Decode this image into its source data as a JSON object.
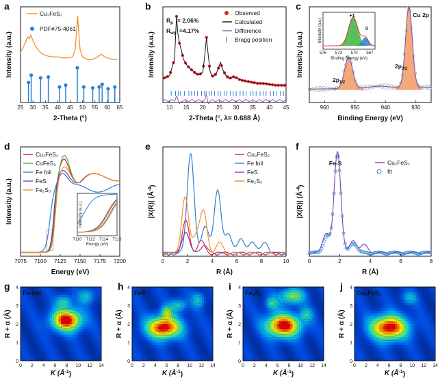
{
  "chart_data": [
    {
      "panel": "a",
      "type": "line",
      "xlabel": "2-Theta (°)",
      "ylabel": "Intensity (a.u.)",
      "xlim": [
        25,
        65
      ],
      "xticks": [
        25,
        30,
        35,
        40,
        45,
        50,
        55,
        60,
        65
      ],
      "series": [
        {
          "name": "Cu₂FeS₂",
          "color": "#f28e2b",
          "x": [
            25,
            26,
            27,
            27.8,
            28.5,
            29.2,
            30,
            31,
            32,
            33,
            34,
            35,
            36,
            38,
            40,
            42,
            44,
            46,
            47,
            47.5,
            48,
            48.5,
            49,
            50,
            52,
            54,
            56,
            57.5,
            59,
            61,
            63,
            64
          ],
          "y": [
            0.55,
            0.6,
            0.66,
            0.72,
            0.7,
            0.74,
            0.68,
            0.62,
            0.58,
            0.55,
            0.53,
            0.52,
            0.51,
            0.5,
            0.5,
            0.49,
            0.49,
            0.5,
            0.58,
            0.75,
            0.95,
            0.75,
            0.58,
            0.5,
            0.47,
            0.47,
            0.5,
            0.53,
            0.5,
            0.48,
            0.47,
            0.47
          ]
        },
        {
          "name": "PDF#75-4061",
          "color": "#2a7fd4",
          "style": "stem",
          "x": [
            28.2,
            29.3,
            33.1,
            36.2,
            40.7,
            43.2,
            47.9,
            50.5,
            54.1,
            56.7,
            57.9,
            60.3,
            63.0
          ],
          "y": [
            0.22,
            0.3,
            0.27,
            0.28,
            0.17,
            0.19,
            0.38,
            0.17,
            0.16,
            0.17,
            0.2,
            0.15,
            0.17
          ]
        }
      ]
    },
    {
      "panel": "b",
      "type": "line",
      "xlabel": "2-Theta (°, λ= 0.688 Å)",
      "ylabel": "Intensity (a.u.)",
      "xlim": [
        8,
        45
      ],
      "xticks": [
        10,
        15,
        20,
        25,
        30,
        35,
        40,
        45
      ],
      "annotations": [
        "R",
        "p",
        "= 2.06%",
        "R",
        "wp",
        "=4.17%"
      ],
      "series": [
        {
          "name": "Observed",
          "color": "#e8202a",
          "style": "marker"
        },
        {
          "name": "Calculated",
          "color": "#111111"
        },
        {
          "name": "Difference",
          "color": "#9b59b6"
        },
        {
          "name": "Bragg position",
          "color": "#2a7fd4",
          "style": "tick",
          "x": [
            10.5,
            11.8,
            12.6,
            13.3,
            14.5,
            15.8,
            16.6,
            17.5,
            18.4,
            19.6,
            20.5,
            21.0,
            21.9,
            22.7,
            23.5,
            24.6,
            25.3,
            26.4,
            27.2,
            28.3,
            29.1,
            30.0,
            31.2,
            32.1,
            33.0,
            34.2,
            35.1,
            36.0,
            37.2,
            38.1,
            39.0,
            40.3,
            41.2,
            42.1,
            43.3,
            44.2
          ]
        }
      ],
      "profile": {
        "x": [
          8,
          10,
          11.5,
          12.1,
          12.5,
          13,
          13.5,
          14.2,
          15,
          16,
          17,
          18,
          19,
          20,
          20.6,
          21.1,
          21.6,
          22.2,
          23,
          24,
          24.7,
          25.3,
          26,
          27,
          28,
          29,
          30,
          31,
          32,
          33.5,
          35,
          36.5,
          38,
          40,
          42,
          45
        ],
        "y": [
          0.25,
          0.28,
          0.45,
          0.9,
          0.72,
          0.62,
          0.55,
          0.45,
          0.4,
          0.36,
          0.33,
          0.3,
          0.29,
          0.32,
          0.5,
          0.68,
          0.5,
          0.32,
          0.27,
          0.3,
          0.36,
          0.42,
          0.34,
          0.28,
          0.25,
          0.27,
          0.26,
          0.24,
          0.23,
          0.22,
          0.21,
          0.2,
          0.2,
          0.19,
          0.18,
          0.18
        ]
      }
    },
    {
      "panel": "c",
      "type": "line",
      "title": "Cu 2p",
      "xlabel": "Binding Energy (eV)",
      "ylabel": "Intensity (a.u.)",
      "xlim": [
        965,
        925
      ],
      "xticks": [
        960,
        950,
        940,
        930
      ],
      "peaks": [
        {
          "label": "2p",
          "sub": "3/2",
          "center": 932.3,
          "height": 0.85
        },
        {
          "label": "2p",
          "sub": "1/2",
          "center": 952.1,
          "height": 0.33
        }
      ],
      "inset": {
        "xlabel": "Binding Energy (eV)",
        "ylabel": "Intensity (a.u)",
        "xlim": [
          576,
          566
        ],
        "xticks": [
          576,
          573,
          570,
          567
        ],
        "components": [
          {
            "label": "+1",
            "center": 570.2,
            "color": "#3cb43c"
          },
          {
            "label": "0",
            "center": 567.9,
            "color": "#2a7fd4"
          }
        ]
      }
    },
    {
      "panel": "d",
      "type": "line",
      "xlabel": "Energy (eV)",
      "ylabel": "Intensity (a.u.)",
      "xlim": [
        7075,
        7200
      ],
      "xticks": [
        7075,
        7100,
        7125,
        7150,
        7175,
        7200
      ],
      "series": [
        {
          "name": "Cu₂FeS₂",
          "color": "#e8202a",
          "edge": 7118,
          "peak": 1.25
        },
        {
          "name": "CuFeS₂",
          "color": "#3cb43c",
          "edge": 7118.5,
          "peak": 1.3
        },
        {
          "name": "Fe foil",
          "color": "#2a7fd4",
          "edge": 7112,
          "peak": 1.05
        },
        {
          "name": "FeS",
          "color": "#7b3fb0",
          "edge": 7117,
          "peak": 1.1
        },
        {
          "name": "Fe₂S₃",
          "color": "#f28e2b",
          "edge": 7119,
          "peak": 1.15
        }
      ],
      "inset": {
        "xlabel": "Energy (eV)",
        "ylabel": "Intensity (a.u.)",
        "xlim": [
          7110,
          7116
        ],
        "xticks": [
          7110,
          7112,
          7114,
          7116
        ]
      }
    },
    {
      "panel": "e",
      "type": "line",
      "xlabel": "R (Å)",
      "ylabel": "|X(R)| (Å",
      "ylabel_sup": "-4",
      "ylabel_end": ")",
      "xlim": [
        0,
        10
      ],
      "xticks": [
        0,
        2,
        4,
        6,
        8,
        10
      ],
      "series": [
        {
          "name": "Cu₂FeS₂",
          "color": "#e8202a",
          "peaks": [
            [
              1.85,
              0.32
            ],
            [
              3.1,
              0.12
            ]
          ]
        },
        {
          "name": "Fe foil",
          "color": "#2a7fd4",
          "peaks": [
            [
              2.25,
              1.0
            ],
            [
              4.45,
              0.62
            ],
            [
              3.45,
              0.28
            ],
            [
              5.3,
              0.18
            ],
            [
              6.3,
              0.15
            ],
            [
              7.3,
              0.12
            ],
            [
              8.3,
              0.1
            ]
          ]
        },
        {
          "name": "FeS",
          "color": "#7b3fb0",
          "peaks": [
            [
              1.85,
              0.22
            ],
            [
              3.3,
              0.08
            ]
          ]
        },
        {
          "name": "Fe₂S₃",
          "color": "#f28e2b",
          "peaks": [
            [
              1.8,
              0.55
            ],
            [
              3.3,
              0.4
            ],
            [
              2.7,
              0.18
            ],
            [
              4.6,
              0.1
            ]
          ]
        }
      ]
    },
    {
      "panel": "f",
      "type": "line",
      "xlabel": "R (Å)",
      "ylabel": "|X(R)| (Å",
      "ylabel_sup": "-4",
      "ylabel_end": ")",
      "xlim": [
        0,
        8
      ],
      "xticks": [
        0,
        2,
        4,
        6,
        8
      ],
      "annotation": "Fe-S",
      "series": [
        {
          "name": "Cu₂FeS₂",
          "color": "#7b3fb0",
          "peaks": [
            [
              1.85,
              1.0
            ],
            [
              1.1,
              0.2
            ],
            [
              2.9,
              0.12
            ],
            [
              3.6,
              0.08
            ]
          ]
        },
        {
          "name": "fit",
          "color": "#2a7fd4",
          "style": "marker",
          "peaks": [
            [
              1.85,
              0.98
            ],
            [
              1.15,
              0.16
            ],
            [
              2.9,
              0.1
            ]
          ]
        }
      ]
    },
    {
      "panel": "g",
      "type": "heatmap",
      "label": "Fe-foil",
      "xlabel": "K (Å",
      "xlabel_sup": "-1",
      "xlabel_end": ")",
      "ylabel": "R + α (Å)",
      "xlim": [
        0,
        14
      ],
      "ylim": [
        0,
        4
      ],
      "xticks": [
        0,
        2,
        4,
        6,
        8,
        10,
        12,
        14
      ],
      "yticks": [
        0,
        1,
        2,
        3,
        4
      ],
      "blobs": [
        [
          8.0,
          2.2,
          2.6,
          0.4,
          1.0
        ],
        [
          7.5,
          3.2,
          1.4,
          0.25,
          0.35
        ],
        [
          11.5,
          3.5,
          1.5,
          0.3,
          0.3
        ]
      ]
    },
    {
      "panel": "h",
      "type": "heatmap",
      "label": "FeS",
      "xlabel": "K (Å",
      "xlabel_sup": "-1",
      "xlabel_end": ")",
      "ylabel": "R + α (Å)",
      "xlim": [
        0,
        14
      ],
      "ylim": [
        0,
        4
      ],
      "xticks": [
        0,
        2,
        4,
        6,
        8,
        10,
        12,
        14
      ],
      "yticks": [
        0,
        1,
        2,
        3,
        4
      ],
      "blobs": [
        [
          5.5,
          1.8,
          3.0,
          0.4,
          1.0
        ],
        [
          6.0,
          2.6,
          1.0,
          0.25,
          0.45
        ],
        [
          8.0,
          3.0,
          1.5,
          0.25,
          0.35
        ],
        [
          11.5,
          3.3,
          1.2,
          0.3,
          0.3
        ]
      ]
    },
    {
      "panel": "i",
      "type": "heatmap",
      "label": "Fe₂S₃",
      "xlabel": "K (Å",
      "xlabel_sup": "-1",
      "xlabel_end": ")",
      "ylabel": "R + α (Å)",
      "xlim": [
        0,
        14
      ],
      "ylim": [
        0,
        4
      ],
      "xticks": [
        0,
        2,
        4,
        6,
        8,
        10,
        12,
        14
      ],
      "yticks": [
        0,
        1,
        2,
        3,
        4
      ],
      "blobs": [
        [
          7.0,
          1.9,
          3.0,
          0.42,
          1.0
        ],
        [
          8.5,
          3.5,
          2.2,
          0.3,
          0.5
        ],
        [
          5.0,
          3.1,
          1.2,
          0.25,
          0.35
        ],
        [
          11.0,
          2.5,
          1.2,
          0.25,
          0.3
        ]
      ]
    },
    {
      "panel": "j",
      "type": "heatmap",
      "label": "Cu₂FeS₂",
      "xlabel": "K (Å",
      "xlabel_sup": "-1",
      "xlabel_end": ")",
      "ylabel": "R + α (Å)",
      "xlim": [
        0,
        14
      ],
      "ylim": [
        0,
        4
      ],
      "xticks": [
        0,
        2,
        4,
        6,
        8,
        10,
        12,
        14
      ],
      "yticks": [
        0,
        1,
        2,
        3,
        4
      ],
      "blobs": [
        [
          6.0,
          1.8,
          3.2,
          0.45,
          1.0
        ],
        [
          9.5,
          3.4,
          1.5,
          0.25,
          0.25
        ]
      ]
    }
  ]
}
